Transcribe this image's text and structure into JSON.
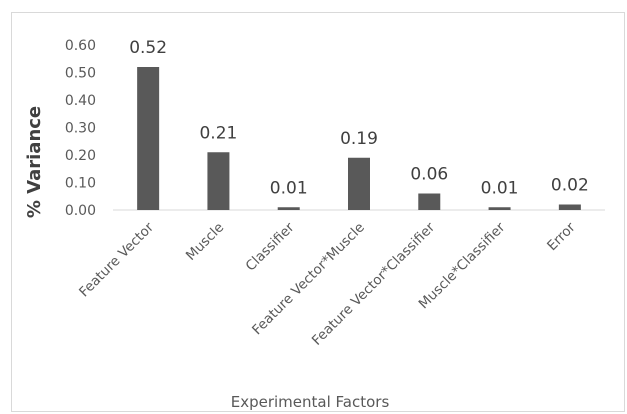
{
  "chart_data": {
    "type": "bar",
    "categories": [
      "Feature Vector",
      "Muscle",
      "Classifier",
      "Feature Vector*Muscle",
      "Feature Vector*Classifier",
      "Muscle*Classifier",
      "Error"
    ],
    "values": [
      0.52,
      0.21,
      0.01,
      0.19,
      0.06,
      0.01,
      0.02
    ],
    "data_labels": [
      "0.52",
      "0.21",
      "0.01",
      "0.19",
      "0.06",
      "0.01",
      "0.02"
    ],
    "title": "",
    "xlabel": "Experimental Factors",
    "ylabel": "% Variance",
    "ylim": [
      0,
      0.6
    ],
    "yticks": [
      "0.00",
      "0.10",
      "0.20",
      "0.30",
      "0.40",
      "0.50",
      "0.60"
    ],
    "grid": false,
    "legend": "none",
    "bar_color": "#595959",
    "axis_color": "#d9d9d9"
  }
}
